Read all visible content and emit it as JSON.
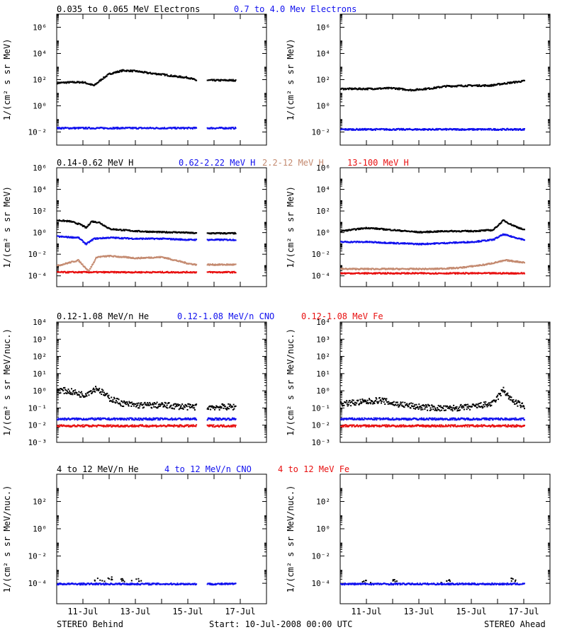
{
  "colors": {
    "black": "#000000",
    "blue": "#1010ee",
    "tan": "#c48a70",
    "red": "#e81010"
  },
  "footer": {
    "left": "STEREO Behind",
    "center": "Start: 10-Jul-2008 00:00 UTC",
    "right": "STEREO Ahead"
  },
  "x_ticks": [
    "11-Jul",
    "13-Jul",
    "15-Jul",
    "17-Jul"
  ],
  "chart_data": [
    {
      "type": "scatter",
      "row": "electrons",
      "legend": [
        {
          "text": "0.035 to 0.065 MeV Electrons",
          "color": "black"
        },
        {
          "text": "0.7 to 4.0 Mev Electrons",
          "color": "blue"
        }
      ],
      "ylabel": "1/(cm² s sr MeV)",
      "yscale": "log",
      "ylim": [
        -3,
        7
      ],
      "ytick_exponents": [
        -2,
        0,
        2,
        4,
        6
      ],
      "xlim": [
        0,
        8
      ],
      "behind": [
        {
          "name": "0.035 to 0.065 MeV Electrons",
          "color": "black",
          "x": [
            0,
            0.5,
            1.0,
            1.4,
            1.7,
            2.0,
            2.5,
            3.0,
            3.5,
            4.0,
            4.5,
            5.0,
            5.3
          ],
          "y": [
            1.8,
            1.85,
            1.85,
            1.6,
            2.1,
            2.5,
            2.75,
            2.7,
            2.55,
            2.45,
            2.3,
            2.2,
            2.0
          ],
          "gaps": [
            [
              5.3,
              5.7
            ]
          ],
          "x_end": 6.8
        },
        {
          "name": "0.7 to 4.0 Mev Electrons",
          "color": "blue",
          "x": [
            0,
            6.8
          ],
          "y": [
            -1.65,
            -1.65
          ],
          "gaps": [
            [
              5.3,
              5.7
            ]
          ]
        }
      ],
      "ahead": [
        {
          "name": "0.035 to 0.065 MeV Electrons",
          "color": "black",
          "x": [
            0,
            1.0,
            2.0,
            2.7,
            3.5,
            4.0,
            5.0,
            5.7,
            6.2,
            7.0
          ],
          "y": [
            1.35,
            1.35,
            1.4,
            1.25,
            1.4,
            1.55,
            1.6,
            1.6,
            1.75,
            1.95
          ]
        },
        {
          "name": "0.7 to 4.0 Mev Electrons",
          "color": "blue",
          "x": [
            0,
            7.0
          ],
          "y": [
            -1.75,
            -1.75
          ]
        }
      ]
    },
    {
      "type": "scatter",
      "row": "protons",
      "legend": [
        {
          "text": "0.14-0.62 MeV H",
          "color": "black"
        },
        {
          "text": "0.62-2.22 MeV H",
          "color": "blue"
        },
        {
          "text": "2.2-12 MeV H",
          "color": "tan"
        },
        {
          "text": "13-100 MeV H",
          "color": "red"
        }
      ],
      "ylabel": "1/(cm² s sr MeV)",
      "yscale": "log",
      "ylim": [
        -5,
        6
      ],
      "ytick_exponents": [
        -4,
        -2,
        0,
        2,
        4,
        6
      ],
      "xlim": [
        0,
        8
      ],
      "behind": [
        {
          "name": "0.14-0.62 MeV H",
          "color": "black",
          "x": [
            0,
            0.5,
            0.9,
            1.1,
            1.3,
            1.6,
            2.0,
            2.5,
            3.0,
            3.5,
            4.0,
            4.5,
            5.0,
            5.3
          ],
          "y": [
            1.2,
            1.1,
            0.8,
            0.5,
            1.1,
            1.0,
            0.4,
            0.3,
            0.2,
            0.15,
            0.1,
            0.1,
            0.05,
            0.0
          ],
          "gaps": [
            [
              5.3,
              5.7
            ]
          ],
          "x_end": 6.8
        },
        {
          "name": "0.62-2.22 MeV H",
          "color": "blue",
          "x": [
            0,
            0.8,
            1.1,
            1.4,
            2.0,
            3.0,
            4.0,
            5.0,
            5.3
          ],
          "y": [
            -0.3,
            -0.4,
            -1.0,
            -0.5,
            -0.4,
            -0.5,
            -0.5,
            -0.6,
            -0.6
          ],
          "gaps": [
            [
              5.3,
              5.7
            ]
          ],
          "x_end": 6.8
        },
        {
          "name": "2.2-12 MeV H",
          "color": "tan",
          "x": [
            0,
            0.8,
            1.2,
            1.5,
            2.0,
            3.0,
            4.0,
            5.0,
            5.3
          ],
          "y": [
            -3.0,
            -2.5,
            -3.5,
            -2.2,
            -2.1,
            -2.3,
            -2.2,
            -2.8,
            -2.9
          ],
          "gaps": [
            [
              5.3,
              5.7
            ]
          ],
          "x_end": 6.8
        },
        {
          "name": "13-100 MeV H",
          "color": "red",
          "x": [
            0,
            6.8
          ],
          "y": [
            -3.6,
            -3.6
          ],
          "gaps": [
            [
              5.3,
              5.7
            ]
          ]
        }
      ],
      "ahead": [
        {
          "name": "0.14-0.62 MeV H",
          "color": "black",
          "x": [
            0,
            1.0,
            2.0,
            3.0,
            4.0,
            5.0,
            5.8,
            6.2,
            6.5,
            7.0
          ],
          "y": [
            0.2,
            0.5,
            0.3,
            0.1,
            0.2,
            0.2,
            0.3,
            1.2,
            0.8,
            0.3
          ]
        },
        {
          "name": "0.62-2.22 MeV H",
          "color": "blue",
          "x": [
            0,
            1.0,
            2.0,
            3.0,
            4.0,
            5.0,
            5.8,
            6.2,
            6.5,
            7.0
          ],
          "y": [
            -0.8,
            -0.8,
            -0.9,
            -1.0,
            -0.9,
            -0.8,
            -0.6,
            -0.1,
            -0.3,
            -0.6
          ]
        },
        {
          "name": "2.2-12 MeV H",
          "color": "tan",
          "x": [
            0,
            2.0,
            3.5,
            4.5,
            5.5,
            6.3,
            7.0
          ],
          "y": [
            -3.3,
            -3.3,
            -3.3,
            -3.2,
            -2.9,
            -2.5,
            -2.7
          ]
        },
        {
          "name": "13-100 MeV H",
          "color": "red",
          "x": [
            0,
            7.0
          ],
          "y": [
            -3.7,
            -3.7
          ]
        }
      ]
    },
    {
      "type": "scatter",
      "row": "heavy-low",
      "legend": [
        {
          "text": "0.12-1.08 MeV/n He",
          "color": "black"
        },
        {
          "text": "0.12-1.08 MeV/n CNO",
          "color": "blue"
        },
        {
          "text": "0.12-1.08 MeV Fe",
          "color": "red"
        }
      ],
      "ylabel": "1/(cm² s sr MeV/nuc.)",
      "yscale": "log",
      "ylim": [
        -3,
        4
      ],
      "ytick_exponents": [
        -3,
        -2,
        -1,
        0,
        1,
        2,
        3,
        4
      ],
      "xlim": [
        0,
        8
      ],
      "behind": [
        {
          "name": "0.12-1.08 MeV/n He",
          "color": "black",
          "x": [
            0,
            0.5,
            1.0,
            1.5,
            2.0,
            2.5,
            3.0,
            4.0,
            5.0,
            5.3
          ],
          "y": [
            0.1,
            0.0,
            -0.2,
            0.2,
            -0.4,
            -0.7,
            -0.8,
            -0.8,
            -0.9,
            -0.9
          ],
          "gaps": [
            [
              5.3,
              5.7
            ]
          ],
          "x_end": 6.8
        },
        {
          "name": "0.12-1.08 MeV/n CNO",
          "color": "blue",
          "x": [
            0,
            6.8
          ],
          "y": [
            -1.6,
            -1.6
          ],
          "gaps": [
            [
              5.3,
              5.7
            ]
          ]
        },
        {
          "name": "0.12-1.08 MeV Fe",
          "color": "red",
          "x": [
            0,
            6.8
          ],
          "y": [
            -2.0,
            -2.0
          ],
          "gaps": [
            [
              5.3,
              5.7
            ]
          ]
        }
      ],
      "ahead": [
        {
          "name": "0.12-1.08 MeV/n He",
          "color": "black",
          "x": [
            0,
            1.0,
            1.5,
            2.0,
            3.0,
            4.0,
            5.0,
            5.8,
            6.2,
            6.5,
            7.0
          ],
          "y": [
            -0.7,
            -0.6,
            -0.5,
            -0.7,
            -0.9,
            -1.0,
            -0.9,
            -0.7,
            0.1,
            -0.5,
            -0.9
          ]
        },
        {
          "name": "0.12-1.08 MeV/n CNO",
          "color": "blue",
          "x": [
            0,
            7.0
          ],
          "y": [
            -1.6,
            -1.6
          ]
        },
        {
          "name": "0.12-1.08 MeV Fe",
          "color": "red",
          "x": [
            0,
            7.0
          ],
          "y": [
            -2.0,
            -2.0
          ]
        }
      ]
    },
    {
      "type": "scatter",
      "row": "heavy-high",
      "legend": [
        {
          "text": "4 to 12 MeV/n He",
          "color": "black"
        },
        {
          "text": "4 to 12 MeV/n CNO",
          "color": "blue"
        },
        {
          "text": "4 to 12 MeV Fe",
          "color": "red"
        }
      ],
      "ylabel": "1/(cm² s sr MeV/nuc.)",
      "yscale": "log",
      "ylim": [
        -5.5,
        4
      ],
      "ytick_exponents": [
        -4,
        -2,
        0,
        2
      ],
      "xlim": [
        0,
        8
      ],
      "behind": [
        {
          "name": "4 to 12 MeV/n He",
          "color": "black",
          "x": [
            1.6,
            2.0,
            2.5,
            3.0
          ],
          "y": [
            -3.7,
            -3.6,
            -3.7,
            -3.7
          ],
          "sparse": true
        },
        {
          "name": "4 to 12 MeV/n CNO",
          "color": "blue",
          "x": [
            0,
            6.8
          ],
          "y": [
            -4.0,
            -4.0
          ],
          "gaps": [
            [
              5.3,
              5.7
            ]
          ]
        }
      ],
      "ahead": [
        {
          "name": "4 to 12 MeV/n He",
          "color": "black",
          "x": [
            1.0,
            2.0,
            4.0,
            6.5
          ],
          "y": [
            -3.8,
            -3.7,
            -3.8,
            -3.7
          ],
          "sparse": true
        },
        {
          "name": "4 to 12 MeV/n CNO",
          "color": "blue",
          "x": [
            0,
            7.0
          ],
          "y": [
            -4.0,
            -4.0
          ]
        }
      ]
    }
  ]
}
